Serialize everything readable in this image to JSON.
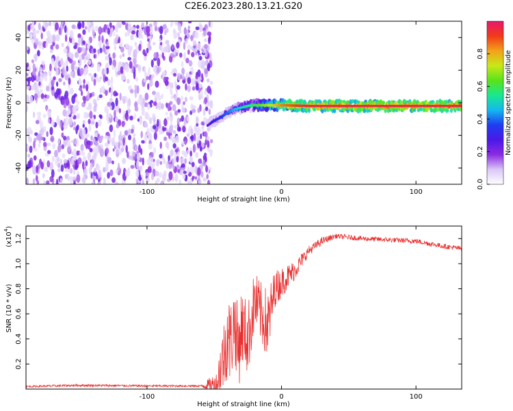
{
  "title": "C2E6.2023.280.13.21.G20",
  "colors": {
    "snr_line": "#e83030",
    "colormap": [
      "#ffffff",
      "#d9c6f7",
      "#8b2be2",
      "#4b18e8",
      "#1f3df0",
      "#14b8f0",
      "#18e890",
      "#5ae21a",
      "#c8e818",
      "#f2a21a",
      "#f23a1a",
      "#e8186e"
    ]
  },
  "chart_data": [
    {
      "type": "heatmap",
      "xlabel": "Height of straight line (km)",
      "ylabel": "Frequency (Hz)",
      "xlim": [
        -190,
        134
      ],
      "ylim": [
        -50,
        50
      ],
      "xticks": [
        -100,
        0,
        100
      ],
      "xtick_labels": [
        "-100",
        "0",
        "100"
      ],
      "yticks": [
        -40,
        -20,
        0,
        20,
        40
      ],
      "ytick_labels": [
        "-40",
        "-20",
        "0",
        "20",
        "40"
      ],
      "colorbar": {
        "label": "Normalized spectral amplitude",
        "range": [
          0,
          1
        ],
        "ticks": [
          0,
          0.2,
          0.4,
          0.6,
          0.8
        ],
        "tick_labels": [
          "0.0",
          "0.2",
          "0.4",
          "0.6",
          "0.8"
        ]
      },
      "signal_trace": {
        "x": [
          -55,
          -50,
          -45,
          -40,
          -35,
          -30,
          -25,
          -20,
          -10,
          0,
          20,
          60,
          100,
          134
        ],
        "y": [
          -14,
          -11,
          -9,
          -6,
          -4,
          -3,
          -2,
          -1.5,
          -1.5,
          -1.5,
          -2,
          -2,
          -2,
          -2
        ],
        "amplitude": [
          0.25,
          0.3,
          0.35,
          0.4,
          0.45,
          0.5,
          0.55,
          0.6,
          0.7,
          0.85,
          0.95,
          0.95,
          0.95,
          0.95
        ]
      },
      "noise_region": {
        "x_range": [
          -190,
          -52
        ],
        "y_range": [
          -50,
          50
        ],
        "amplitude_range": [
          0.05,
          0.25
        ]
      }
    },
    {
      "type": "line",
      "xlabel": "Height of straight line (km)",
      "ylabel": "SNR (10 * v/v)",
      "y_multiplier": "(x10",
      "y_multiplier_exp": "4",
      "xlim": [
        -190,
        134
      ],
      "ylim": [
        0,
        1.3
      ],
      "xticks": [
        -100,
        0,
        100
      ],
      "xtick_labels": [
        "-100",
        "0",
        "100"
      ],
      "yticks": [
        0.2,
        0.4,
        0.6,
        0.8,
        1.0,
        1.2
      ],
      "ytick_labels": [
        "0.2",
        "0.4",
        "0.6",
        "0.8",
        "1.0",
        "1.2"
      ],
      "series": [
        {
          "x": [
            -190,
            -150,
            -100,
            -60,
            -48,
            -45,
            -42,
            -40,
            -38,
            -35,
            -32,
            -30,
            -25,
            -20,
            -15,
            -10,
            -5,
            0,
            5,
            10,
            20,
            30,
            40,
            60,
            80,
            100,
            120,
            134
          ],
          "y": [
            0.02,
            0.03,
            0.025,
            0.025,
            0.04,
            0.2,
            0.3,
            0.45,
            0.35,
            0.55,
            0.3,
            0.5,
            0.4,
            0.7,
            0.6,
            0.5,
            0.8,
            0.85,
            0.9,
            0.95,
            1.1,
            1.18,
            1.22,
            1.2,
            1.19,
            1.18,
            1.14,
            1.12
          ],
          "noise": [
            0.008,
            0.01,
            0.008,
            0.008,
            0.1,
            0.25,
            0.3,
            0.35,
            0.35,
            0.3,
            0.35,
            0.3,
            0.3,
            0.25,
            0.25,
            0.3,
            0.15,
            0.12,
            0.1,
            0.08,
            0.04,
            0.03,
            0.02,
            0.02,
            0.02,
            0.02,
            0.02,
            0.02
          ]
        }
      ]
    }
  ]
}
